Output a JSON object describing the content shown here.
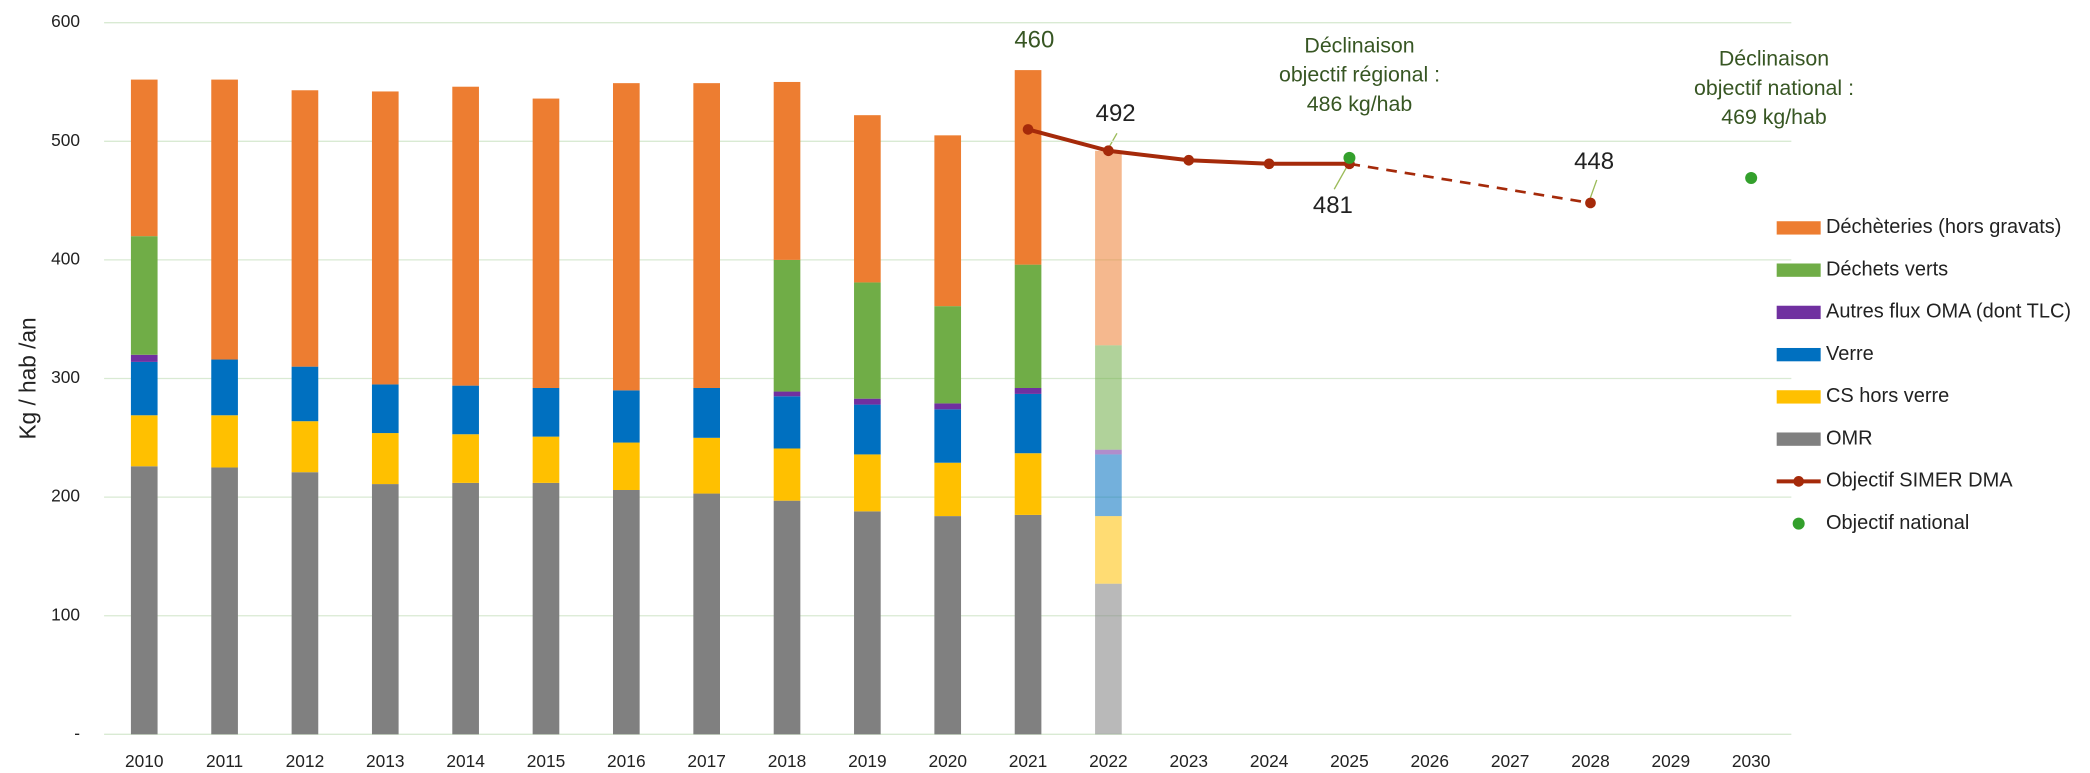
{
  "chart_data": {
    "type": "bar",
    "y_label": "Kg / hab /an",
    "categories": [
      "2010",
      "2011",
      "2012",
      "2013",
      "2014",
      "2015",
      "2016",
      "2017",
      "2018",
      "2019",
      "2020",
      "2021",
      "2022",
      "2023",
      "2024",
      "2025",
      "2026",
      "2027",
      "2028",
      "2029",
      "2030"
    ],
    "opacity": [
      1,
      1,
      1,
      1,
      1,
      1,
      1,
      1,
      1,
      1,
      1,
      1,
      0.55,
      1,
      1,
      1,
      1,
      1,
      1,
      1,
      1
    ],
    "ylim": [
      0,
      600
    ],
    "yticks": [
      {
        "value": 0,
        "label": "-"
      },
      100,
      200,
      300,
      400,
      500,
      600
    ],
    "grid": true,
    "legend": "right",
    "series": [
      {
        "name": "OMR",
        "type": "bar",
        "color": "#808080",
        "values": [
          226,
          225,
          221,
          211,
          212,
          212,
          206,
          203,
          197,
          188,
          184,
          185,
          127,
          null,
          null,
          null,
          null,
          null,
          null,
          null,
          null
        ]
      },
      {
        "name": "CS hors verre",
        "type": "bar",
        "color": "#FFC000",
        "values": [
          43,
          44,
          43,
          43,
          41,
          39,
          40,
          47,
          44,
          48,
          45,
          52,
          57,
          null,
          null,
          null,
          null,
          null,
          null,
          null,
          null
        ]
      },
      {
        "name": "Verre",
        "type": "bar",
        "color": "#0070C0",
        "values": [
          45,
          47,
          46,
          41,
          41,
          41,
          44,
          42,
          44,
          42,
          45,
          50,
          52,
          null,
          null,
          null,
          null,
          null,
          null,
          null,
          null
        ]
      },
      {
        "name": "Autres flux OMA (dont TLC)",
        "type": "bar",
        "color": "#7030A0",
        "values": [
          6,
          0,
          0,
          0,
          0,
          0,
          0,
          0,
          4,
          5,
          5,
          5,
          4,
          null,
          null,
          null,
          null,
          null,
          null,
          null,
          null
        ]
      },
      {
        "name": "Déchets verts",
        "type": "bar",
        "color": "#70AD47",
        "values": [
          100,
          0,
          0,
          0,
          0,
          0,
          0,
          0,
          111,
          98,
          82,
          104,
          88,
          null,
          null,
          null,
          null,
          null,
          null,
          null,
          null
        ]
      },
      {
        "name": "Déchèteries (hors gravats)",
        "type": "bar",
        "color": "#ED7D31",
        "values": [
          132,
          236,
          233,
          247,
          252,
          244,
          259,
          257,
          150,
          141,
          144,
          164,
          164,
          null,
          null,
          null,
          null,
          null,
          null,
          null,
          null
        ]
      },
      {
        "name": "Objectif SIMER DMA",
        "type": "line",
        "color": "#A52A0A",
        "gap_style": "dashed",
        "values": [
          null,
          null,
          null,
          null,
          null,
          null,
          null,
          null,
          null,
          null,
          null,
          510,
          492,
          484,
          481,
          481,
          null,
          null,
          448,
          null,
          null
        ],
        "value_labels": [
          null,
          null,
          null,
          null,
          null,
          null,
          null,
          null,
          null,
          null,
          null,
          null,
          "492",
          null,
          null,
          "481",
          null,
          null,
          "448",
          null,
          null
        ]
      },
      {
        "name": "Objectif national",
        "type": "scatter",
        "color": "#33A02C",
        "values": [
          null,
          null,
          null,
          null,
          null,
          null,
          null,
          null,
          null,
          null,
          null,
          null,
          null,
          null,
          null,
          486,
          null,
          null,
          null,
          null,
          469
        ]
      }
    ],
    "annotations": [
      {
        "lines": [
          "460"
        ]
      },
      {
        "lines": [
          "Déclinaison",
          "objectif régional :",
          "486 kg/hab"
        ]
      },
      {
        "lines": [
          "Déclinaison",
          "objectif national :",
          "469 kg/hab"
        ]
      }
    ]
  }
}
